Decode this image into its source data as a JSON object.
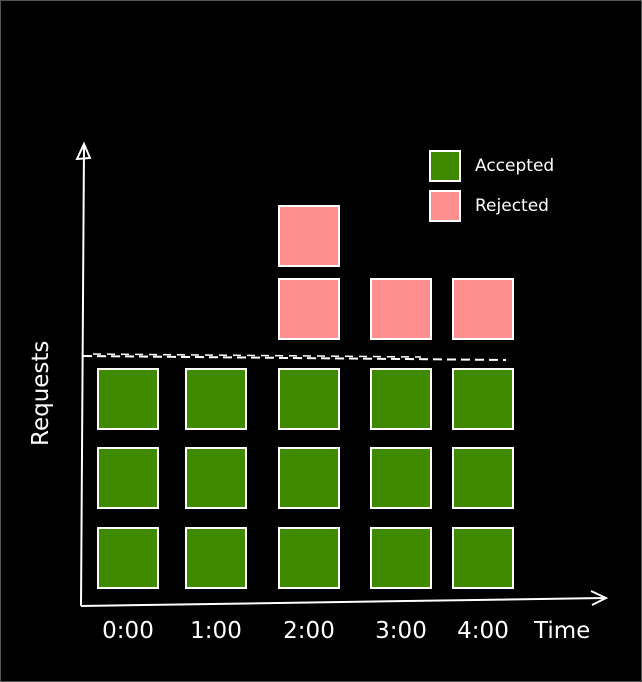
{
  "chart_data": {
    "type": "bar",
    "stacked": true,
    "xlabel": "Time",
    "ylabel": "Requests",
    "categories": [
      "0:00",
      "1:00",
      "2:00",
      "3:00",
      "4:00"
    ],
    "series": [
      {
        "name": "Accepted",
        "values": [
          3,
          3,
          3,
          3,
          3
        ],
        "color": "#408a00"
      },
      {
        "name": "Rejected",
        "values": [
          0,
          0,
          2,
          1,
          1
        ],
        "color": "#ff8f8f"
      }
    ],
    "threshold": 3,
    "threshold_style": "dashed",
    "legend": "top-right",
    "grid": false
  }
}
